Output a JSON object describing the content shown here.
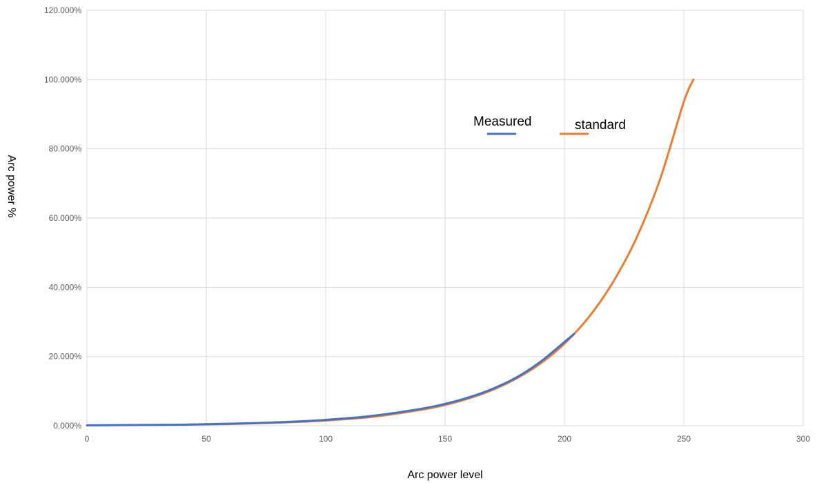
{
  "chart_data": {
    "type": "line",
    "xlabel": "Arc power level",
    "ylabel": "Arc power %",
    "xlim": [
      0,
      300
    ],
    "ylim": [
      0,
      120
    ],
    "x_ticks": [
      "0",
      "50",
      "100",
      "150",
      "200",
      "250",
      "300"
    ],
    "y_ticks": [
      "0.000%",
      "20.000%",
      "40.000%",
      "60.000%",
      "80.000%",
      "100.000%",
      "120.000%"
    ],
    "grid": true,
    "legend_position": "top-right",
    "series": [
      {
        "name": "Measured",
        "color": "#4472C4",
        "x": [
          0,
          20,
          40,
          60,
          80,
          100,
          120,
          140,
          150,
          160,
          170,
          180,
          190,
          200,
          204
        ],
        "y": [
          0.1,
          0.2,
          0.3,
          0.6,
          1.0,
          1.7,
          2.9,
          4.9,
          6.3,
          8.2,
          10.7,
          14.0,
          18.5,
          24.2,
          26.5
        ]
      },
      {
        "name": "standard",
        "color": "#ED7D31",
        "x": [
          0,
          20,
          40,
          60,
          80,
          100,
          120,
          140,
          150,
          160,
          170,
          180,
          190,
          200,
          210,
          220,
          230,
          240,
          250,
          254
        ],
        "y": [
          0.1,
          0.2,
          0.3,
          0.5,
          0.9,
          1.5,
          2.6,
          4.6,
          6.0,
          7.9,
          10.4,
          13.7,
          18.0,
          23.7,
          31.2,
          41.1,
          54.0,
          71.1,
          93.6,
          100.0
        ]
      }
    ]
  }
}
